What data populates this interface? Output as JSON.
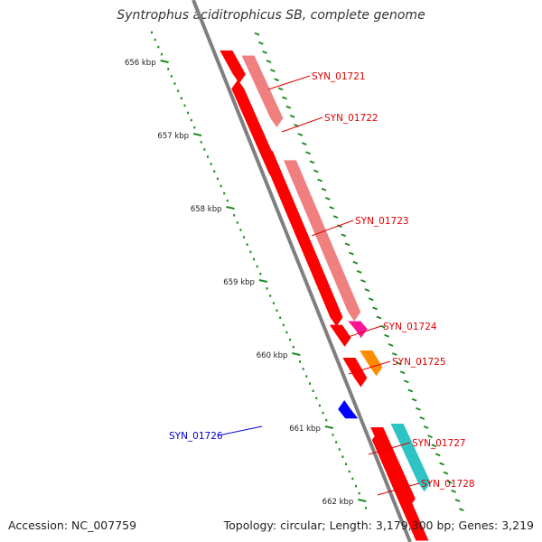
{
  "title": "Syntrophus aciditrophicus SB, complete genome",
  "accession_label": "Accession: NC_007759",
  "topology_label": "Topology: circular; Length: 3,179,300 bp; Genes: 3,219",
  "colors": {
    "backbone": "#7f7f7f",
    "gene_red": "#ff0000",
    "gene_pink": "#f08080",
    "gene_magenta": "#ff1493",
    "gene_orange": "#ff8c00",
    "gene_blue": "#0000ff",
    "gene_cyan": "#2ec4c4",
    "tick": "#1e8a1e",
    "label_red": "#e00000",
    "label_blue": "#0000cc"
  },
  "ruler_labels": [
    "656 kbp",
    "657 kbp",
    "658 kbp",
    "659 kbp",
    "660 kbp",
    "661 kbp",
    "662 kbp"
  ],
  "genes": [
    {
      "label": "SYN_01721",
      "start_kbp": 655.92,
      "end_kbp": 656.9,
      "strand": "+",
      "track": "pink"
    },
    {
      "label": "SYN_01722",
      "start_kbp": 656.25,
      "end_kbp": 657.55,
      "strand": "-",
      "track": "red"
    },
    {
      "label": "SYN_01723",
      "start_kbp": 657.35,
      "end_kbp": 659.55,
      "strand": "+",
      "track": "pink"
    },
    {
      "label": "SYN_01724",
      "start_kbp": 659.55,
      "end_kbp": 659.78,
      "strand": "+",
      "track": "magenta"
    },
    {
      "label": "SYN_01725",
      "start_kbp": 659.95,
      "end_kbp": 660.3,
      "strand": "+",
      "track": "orange"
    },
    {
      "label": "SYN_01726",
      "start_kbp": 660.63,
      "end_kbp": 660.88,
      "strand": "-",
      "track": "blue"
    },
    {
      "label": "SYN_01727",
      "start_kbp": 660.95,
      "end_kbp": 661.88,
      "strand": "+",
      "track": "cyan"
    },
    {
      "label": "SYN_01728",
      "start_kbp": 661.05,
      "end_kbp": 662.55,
      "strand": "-",
      "track": "red"
    }
  ]
}
